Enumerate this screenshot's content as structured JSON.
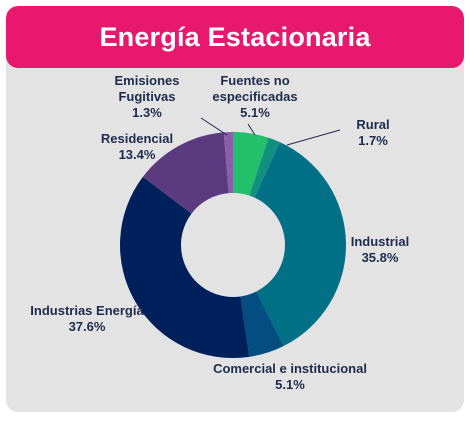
{
  "colors": {
    "header_bg": "#e8186e",
    "panel_bg": "#e3e3e3",
    "label_text": "#1d2b4e"
  },
  "chart_data": {
    "type": "donut",
    "title": "Energía Estacionaria",
    "slices": [
      {
        "name": "Fuentes no especificadas",
        "label_lines": [
          "Fuentes no",
          "especificadas"
        ],
        "value_label": "5.1%",
        "value": 5.1,
        "color": "#22c06b"
      },
      {
        "name": "Rural",
        "label_lines": [
          "Rural"
        ],
        "value_label": "1.7%",
        "value": 1.7,
        "color": "#12907f"
      },
      {
        "name": "Industrial",
        "label_lines": [
          "Industrial"
        ],
        "value_label": "35.8%",
        "value": 35.8,
        "color": "#007087"
      },
      {
        "name": "Comercial e institucional",
        "label_lines": [
          "Comercial e institucional"
        ],
        "value_label": "5.1%",
        "value": 5.1,
        "color": "#044d80"
      },
      {
        "name": "Industrias Energía",
        "label_lines": [
          "Industrias Energía"
        ],
        "value_label": "37.6%",
        "value": 37.6,
        "color": "#00205b"
      },
      {
        "name": "Residencial",
        "label_lines": [
          "Residencial"
        ],
        "value_label": "13.4%",
        "value": 13.4,
        "color": "#5b3a80"
      },
      {
        "name": "Emisiones Fugitivas",
        "label_lines": [
          "Emisiones",
          "Fugitivas"
        ],
        "value_label": "1.3%",
        "value": 1.3,
        "color": "#8a5ea8"
      }
    ],
    "start_angle_deg": 0,
    "direction": "clockwise"
  }
}
